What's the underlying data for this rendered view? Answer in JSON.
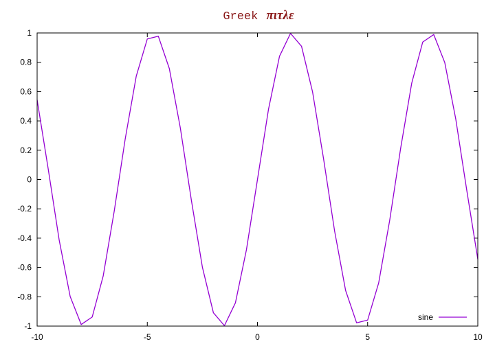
{
  "chart_data": {
    "type": "line",
    "title": "Greek",
    "title_greek": "πιτλε",
    "xlabel": "",
    "ylabel": "",
    "xlim": [
      -10,
      10
    ],
    "ylim": [
      -1,
      1
    ],
    "x_ticks": [
      -10,
      -5,
      0,
      5,
      10
    ],
    "y_ticks": [
      -1,
      -0.8,
      -0.6,
      -0.4,
      -0.2,
      0,
      0.2,
      0.4,
      0.6,
      0.8,
      1
    ],
    "x_tick_labels": [
      "-10",
      "-5",
      "0",
      "5",
      "10"
    ],
    "y_tick_labels": [
      "-1",
      "-0.8",
      "-0.6",
      "-0.4",
      "-0.2",
      "0",
      "0.2",
      "0.4",
      "0.6",
      "0.8",
      "1"
    ],
    "grid": false,
    "legend_position": "bottom-right",
    "series": [
      {
        "name": "sine",
        "color": "#9400d3",
        "x": [
          -10,
          -9.5,
          -9,
          -8.5,
          -8,
          -7.5,
          -7,
          -6.5,
          -6,
          -5.5,
          -5,
          -4.5,
          -4,
          -3.5,
          -3,
          -2.5,
          -2,
          -1.5,
          -1,
          -0.5,
          0,
          0.5,
          1,
          1.5,
          2,
          2.5,
          3,
          3.5,
          4,
          4.5,
          5,
          5.5,
          6,
          6.5,
          7,
          7.5,
          8,
          8.5,
          9,
          9.5,
          10
        ],
        "y": [
          0.544,
          0.075,
          -0.412,
          -0.798,
          -0.989,
          -0.938,
          -0.657,
          -0.215,
          0.279,
          0.706,
          0.959,
          0.978,
          0.757,
          0.351,
          -0.141,
          -0.598,
          -0.909,
          -0.997,
          -0.841,
          -0.479,
          0,
          0.479,
          0.841,
          0.997,
          0.909,
          0.598,
          0.141,
          -0.351,
          -0.757,
          -0.978,
          -0.959,
          -0.706,
          -0.279,
          0.215,
          0.657,
          0.938,
          0.989,
          0.798,
          0.412,
          -0.075,
          -0.544
        ]
      }
    ]
  }
}
